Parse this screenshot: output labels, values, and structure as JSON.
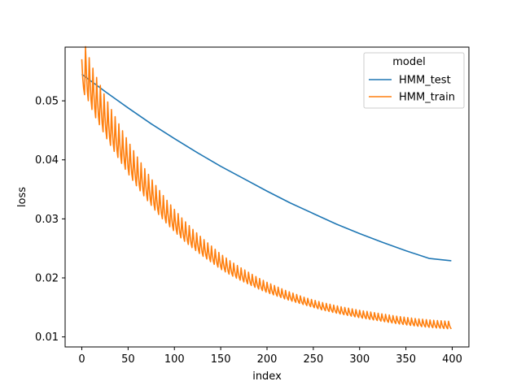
{
  "chart_data": {
    "type": "line",
    "title": "",
    "xlabel": "index",
    "ylabel": "loss",
    "xlim": [
      -18,
      418
    ],
    "ylim": [
      0.0083,
      0.0591
    ],
    "x_ticks": [
      0,
      50,
      100,
      150,
      200,
      250,
      300,
      350,
      400
    ],
    "x_tick_labels": [
      "0",
      "50",
      "100",
      "150",
      "200",
      "250",
      "300",
      "350",
      "400"
    ],
    "y_ticks": [
      0.01,
      0.02,
      0.03,
      0.04,
      0.05
    ],
    "y_tick_labels": [
      "0.01",
      "0.02",
      "0.03",
      "0.04",
      "0.05"
    ],
    "grid": false,
    "legend": {
      "title": "model",
      "placement": "top-right"
    },
    "series": [
      {
        "name": "HMM_test",
        "color": "#1f77b4",
        "x": [
          0,
          25,
          50,
          75,
          100,
          125,
          150,
          175,
          200,
          225,
          250,
          275,
          300,
          325,
          350,
          375,
          399
        ],
        "y": [
          0.0545,
          0.0516,
          0.0488,
          0.0461,
          0.0436,
          0.0412,
          0.0389,
          0.0368,
          0.0347,
          0.0327,
          0.0309,
          0.0291,
          0.0275,
          0.026,
          0.0246,
          0.0233,
          0.0229
        ]
      },
      {
        "name": "HMM_train",
        "color": "#ff7f0e",
        "x": [
          0,
          2,
          4,
          6,
          8,
          10,
          13,
          16,
          20,
          25,
          30,
          40,
          50,
          60,
          70,
          80,
          90,
          100,
          110,
          120,
          130,
          140,
          150,
          160,
          170,
          180,
          190,
          200,
          220,
          240,
          260,
          280,
          300,
          320,
          340,
          360,
          380,
          399
        ],
        "y": [
          0.0512,
          0.053,
          0.0535,
          0.0525,
          0.0518,
          0.051,
          0.0498,
          0.0488,
          0.0476,
          0.046,
          0.0445,
          0.0418,
          0.0392,
          0.0368,
          0.0346,
          0.0325,
          0.0306,
          0.0289,
          0.0273,
          0.0259,
          0.0246,
          0.0234,
          0.0222,
          0.0212,
          0.0203,
          0.0195,
          0.0187,
          0.018,
          0.0168,
          0.0158,
          0.0149,
          0.0142,
          0.0136,
          0.0131,
          0.0126,
          0.0122,
          0.0119,
          0.0117
        ]
      }
    ],
    "colors": {
      "background": "#ffffff",
      "axes": "#000000",
      "legend_border": "#cccccc"
    }
  }
}
